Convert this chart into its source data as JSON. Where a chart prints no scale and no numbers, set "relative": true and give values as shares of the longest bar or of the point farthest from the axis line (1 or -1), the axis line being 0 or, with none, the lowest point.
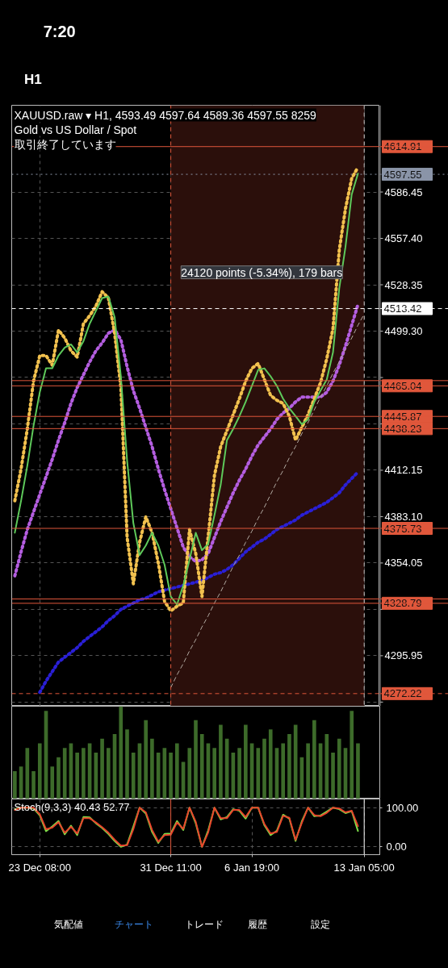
{
  "chart_data": [
    {
      "type": "line",
      "title": "XAUUSD.raw ▾ H1, 4593.49 4597.64 4589.36 4597.55 8259",
      "subtitle": "Gold vs US Dollar / Spot",
      "annotations": [
        "取引終了しています",
        "24120 points (-5.34%), 179 bars"
      ],
      "categories": [
        null,
        null,
        null,
        null,
        "23 Dec 08:00",
        null,
        null,
        null,
        null,
        null,
        null,
        null,
        null,
        null,
        null,
        null,
        null,
        null,
        null,
        null,
        null,
        null,
        null,
        null,
        null,
        "31 Dec 11:00",
        null,
        null,
        null,
        null,
        null,
        null,
        null,
        null,
        null,
        null,
        null,
        null,
        "6 Jan 19:00",
        null,
        null,
        null,
        null,
        null,
        null,
        null,
        null,
        null,
        null,
        null,
        null,
        null,
        null,
        null,
        null,
        null,
        "13 Jan 05:00",
        null,
        null
      ],
      "ylim": [
        4264.3,
        4640.8
      ],
      "yticks": [
        4586.45,
        {
          "value": 4557.4,
          "label": "4557.40"
        },
        4528.35,
        {
          "value": 4499.3,
          "label": "4499.30"
        },
        {
          "value": 4470.25,
          "label": null
        },
        {
          "value": 4441.2,
          "label": null
        },
        4412.15,
        {
          "value": 4383.1,
          "label": "4383.10"
        },
        4354.05,
        {
          "value": 4325,
          "label": null
        },
        4295.95,
        {
          "value": 4266.9,
          "label": null
        }
      ],
      "tick_labels": "y",
      "grid": true,
      "bands": [
        {
          "axis": "x",
          "from": "31 Dec 11:00",
          "to": "13 Jan 05:00",
          "color": "#2b0f0b"
        }
      ],
      "ref_lines": [
        {
          "axis": "y",
          "value": 4614.91,
          "label": "4614.91",
          "color": "#e0573b"
        },
        {
          "axis": "y",
          "value": 4597.55,
          "label": "4597.55",
          "color": "#8a94a8",
          "line_style": "dotted"
        },
        {
          "axis": "y",
          "value": 4513.42,
          "label": "4513.42",
          "color": "#ffffff",
          "line_style": "dashed"
        },
        {
          "axis": "y",
          "value": 4468.3,
          "label": null,
          "color": "#e0573b"
        },
        {
          "axis": "y",
          "value": 4465.04,
          "label": "4465.04",
          "color": "#e0573b"
        },
        {
          "axis": "y",
          "value": 4445.87,
          "label": "4445.87",
          "color": "#e0573b"
        },
        {
          "axis": "y",
          "value": 4438.23,
          "label": "4438.23",
          "color": "#e0573b"
        },
        {
          "axis": "y",
          "value": 4375.73,
          "label": "4375.73",
          "color": "#e0573b"
        },
        {
          "axis": "y",
          "value": 4331.5,
          "label": null,
          "color": "#e0573b"
        },
        {
          "axis": "y",
          "value": 4328.79,
          "label": "4328.79",
          "color": "#e0573b"
        },
        {
          "axis": "y",
          "value": 4272.22,
          "label": "4272.22",
          "color": "#e0573b",
          "line_style": "dashed"
        },
        {
          "axis": "x",
          "value": "31 Dec 11:00",
          "label": null,
          "color": "#e0573b",
          "line_style": "dashed"
        },
        {
          "axis": "x",
          "value": "13 Jan 05:00",
          "label": null,
          "color": "#cccccc",
          "line_style": "dashed"
        }
      ],
      "series": [
        {
          "color": "#b45ee0",
          "line_style": "dotted",
          "values": [
            4346,
            4361,
            4375,
            4386,
            4397,
            4408,
            4419,
            4431,
            4442,
            4454,
            4464,
            4472,
            4480,
            4487,
            4492,
            4498,
            4500,
            4494,
            4477,
            4462,
            4451,
            4439,
            4427,
            4413,
            4400,
            4388,
            4376,
            4364,
            4358,
            4355,
            4356,
            4360,
            4370,
            4380,
            4389,
            4398,
            4406,
            4413,
            4421,
            4428,
            4433,
            4438,
            4444,
            4448,
            4451,
            4455,
            4458,
            4458,
            4458,
            4458,
            4461,
            4468,
            4478,
            4490,
            4503,
            4516,
            null,
            null,
            null
          ]
        },
        {
          "color": "#2a1fd6",
          "line_style": "dotted",
          "values": [
            null,
            null,
            null,
            null,
            4273,
            4280,
            4286,
            4292,
            4295,
            4298,
            4301,
            4305,
            4308,
            4311,
            4314,
            4318,
            4321,
            4325,
            4327,
            4329,
            4331,
            4332,
            4334,
            4336,
            4337,
            4338,
            4339,
            4340,
            4341,
            4342,
            4343,
            4345,
            4347,
            4348,
            4350,
            4353,
            4357,
            4361,
            4364,
            4367,
            4369,
            4372,
            4375,
            4377,
            4379,
            4381,
            4384,
            4386,
            4388,
            4390,
            4392,
            4395,
            4398,
            4403,
            4407,
            4411,
            null,
            null,
            null
          ]
        },
        {
          "color": "#f2c14e",
          "line_style": "dotted",
          "values": [
            4393,
            4413,
            4438,
            4468,
            4484,
            4484,
            4478,
            4500,
            4495,
            4487,
            4483,
            4504,
            4509,
            4515,
            4524,
            4520,
            4498,
            4464,
            4370,
            4341,
            4367,
            4383,
            4373,
            4354,
            4330,
            4324,
            4327,
            4329,
            4375,
            4360,
            4333,
            4371,
            4409,
            4427,
            4437,
            4447,
            4457,
            4468,
            4476,
            4479,
            4469,
            4459,
            4456,
            4454,
            4446,
            4431,
            4439,
            4447,
            4457,
            4467,
            4482,
            4501,
            4550,
            4576,
            4595,
            4602,
            null,
            null,
            null
          ]
        },
        {
          "color": "#5ec95a",
          "line_style": "solid",
          "values": [
            4373,
            4393,
            4415,
            4440,
            4461,
            4476,
            4476,
            4484,
            4489,
            4491,
            4486,
            4493,
            4504,
            4512,
            4520,
            4521,
            4508,
            4471,
            4418,
            4379,
            4359,
            4365,
            4373,
            4365,
            4353,
            4333,
            4328,
            4340,
            4356,
            4373,
            4362,
            4366,
            4384,
            4403,
            4431,
            4438,
            4446,
            4455,
            4465,
            4475,
            4476,
            4471,
            4465,
            4457,
            4451,
            4446,
            4441,
            4444,
            4455,
            4462,
            4469,
            4486,
            4526,
            4552,
            4585,
            4598,
            null,
            null,
            null
          ]
        },
        {
          "color": "#b0a8a0",
          "line_style": "dashed",
          "values": [
            null,
            null,
            null,
            null,
            null,
            null,
            null,
            null,
            null,
            null,
            null,
            null,
            null,
            null,
            null,
            null,
            null,
            null,
            null,
            null,
            null,
            null,
            null,
            null,
            null,
            4276,
            4284,
            4291,
            4299,
            4306,
            4314,
            4321,
            4329,
            4336,
            4344,
            4352,
            4359,
            4367,
            4374,
            4382,
            4389,
            4397,
            4405,
            4412,
            4420,
            4427,
            4435,
            4442,
            4450,
            4458,
            4465,
            4473,
            4480,
            4488,
            4495,
            4503,
            4510,
            null,
            null
          ]
        }
      ]
    },
    {
      "type": "bar",
      "relative": true,
      "color": "#3d6b2a",
      "tick_labels": false,
      "categories": [
        null,
        null,
        null,
        null,
        "23 Dec 08:00",
        null,
        null,
        null,
        null,
        null,
        null,
        null,
        null,
        null,
        null,
        null,
        null,
        null,
        null,
        null,
        null,
        null,
        null,
        null,
        null,
        "31 Dec 11:00",
        null,
        null,
        null,
        null,
        null,
        null,
        null,
        null,
        null,
        null,
        null,
        null,
        "6 Jan 19:00",
        null,
        null,
        null,
        null,
        null,
        null,
        null,
        null,
        null,
        null,
        null,
        null,
        null,
        null,
        null,
        null,
        null,
        "13 Jan 05:00",
        null,
        null
      ],
      "values": [
        0.3,
        0.35,
        0.55,
        0.3,
        0.6,
        0.95,
        0.35,
        0.45,
        0.55,
        0.6,
        0.5,
        0.55,
        0.6,
        0.5,
        0.65,
        0.55,
        0.7,
        1.0,
        0.75,
        0.5,
        0.6,
        0.85,
        0.65,
        0.5,
        0.55,
        0.5,
        0.6,
        0.4,
        0.55,
        0.85,
        0.7,
        0.6,
        0.55,
        0.8,
        0.65,
        0.5,
        0.55,
        0.8,
        0.6,
        0.55,
        0.65,
        0.75,
        0.55,
        0.6,
        0.7,
        0.8,
        0.45,
        0.6,
        0.85,
        0.6,
        0.7,
        0.5,
        0.65,
        0.55,
        0.95,
        0.6,
        null,
        null,
        null
      ]
    },
    {
      "type": "line",
      "title": "Stoch(9,3,3) 40.43 52.77",
      "ylim": [
        -20,
        122
      ],
      "grid": true,
      "categories": [
        null,
        null,
        null,
        null,
        "23 Dec 08:00",
        null,
        null,
        null,
        null,
        null,
        null,
        null,
        null,
        null,
        null,
        null,
        null,
        null,
        null,
        null,
        null,
        null,
        null,
        null,
        null,
        "31 Dec 11:00",
        null,
        null,
        null,
        null,
        null,
        null,
        null,
        null,
        null,
        null,
        null,
        null,
        "6 Jan 19:00",
        null,
        null,
        null,
        null,
        null,
        null,
        null,
        null,
        null,
        null,
        null,
        null,
        null,
        null,
        null,
        null,
        null,
        "13 Jan 05:00",
        null,
        null
      ],
      "yticks": [
        {
          "value": 100,
          "label": "100.00"
        },
        {
          "value": 0,
          "label": "0.00"
        }
      ],
      "ref_lines": [
        {
          "axis": "x",
          "value": "31 Dec 11:00",
          "label": null,
          "color": "#e0573b"
        },
        {
          "axis": "x",
          "value": "13 Jan 05:00",
          "label": null,
          "color": "#ffffff"
        }
      ],
      "series": [
        {
          "color": "#7ee04a",
          "values": [
            96,
            100,
            100,
            98,
            80,
            40,
            52,
            66,
            32,
            54,
            30,
            76,
            75,
            60,
            48,
            33,
            15,
            0,
            6,
            52,
            100,
            85,
            38,
            10,
            33,
            34,
            66,
            43,
            100,
            60,
            0,
            42,
            100,
            70,
            76,
            96,
            92,
            72,
            100,
            100,
            55,
            30,
            41,
            82,
            72,
            15,
            65,
            100,
            78,
            80,
            90,
            100,
            96,
            86,
            91,
            40.43,
            null,
            null,
            null
          ]
        },
        {
          "color": "#e8432b",
          "values": [
            94,
            100,
            100,
            100,
            83,
            45,
            49,
            63,
            36,
            51,
            34,
            73,
            73,
            62,
            50,
            36,
            18,
            3,
            4,
            45,
            100,
            88,
            43,
            13,
            30,
            31,
            62,
            46,
            100,
            64,
            0,
            37,
            100,
            73,
            73,
            94,
            94,
            76,
            100,
            100,
            58,
            34,
            38,
            79,
            74,
            18,
            61,
            100,
            81,
            78,
            87,
            100,
            98,
            88,
            92,
            52.77,
            null,
            null,
            null
          ]
        }
      ]
    },
    {
      "type": "other",
      "annotations": [
        "7:20",
        "H1",
        "気配値",
        "チャート",
        "トレード",
        "履歴",
        "設定"
      ]
    }
  ]
}
